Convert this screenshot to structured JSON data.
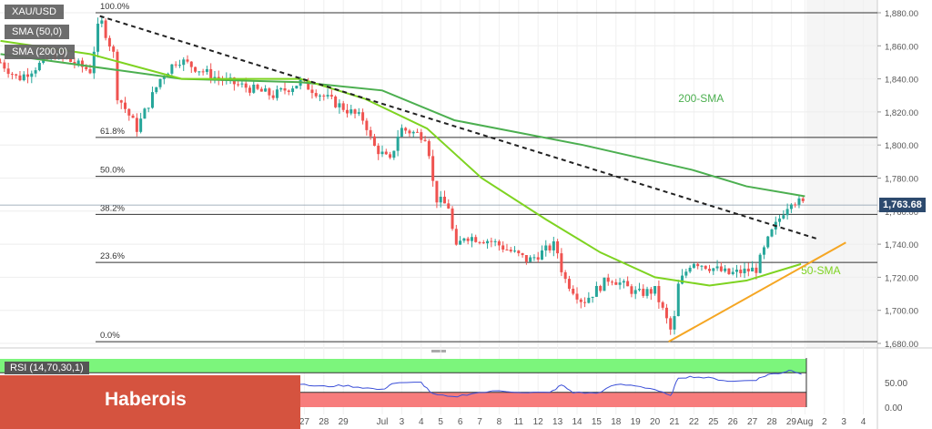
{
  "chart_data": {
    "type": "candlestick",
    "symbol": "XAU/USD",
    "legend": [
      "XAU/USD",
      "SMA (50,0)",
      "SMA (200,0)"
    ],
    "last_price": "1,763.68",
    "ylim": [
      1670,
      1890
    ],
    "y_ticks": [
      "1,880.00",
      "1,860.00",
      "1,840.00",
      "1,820.00",
      "1,800.00",
      "1,780.00",
      "1,760.00",
      "1,740.00",
      "1,720.00",
      "1,700.00",
      "1,680.00"
    ],
    "y_tick_values": [
      1880,
      1860,
      1840,
      1820,
      1800,
      1780,
      1760,
      1740,
      1720,
      1700,
      1680
    ],
    "x_ticks": [
      {
        "label": "27",
        "day": -4
      },
      {
        "label": "28",
        "day": -3
      },
      {
        "label": "29",
        "day": -2
      },
      {
        "label": "Jul",
        "day": 0
      },
      {
        "label": "3",
        "day": 1
      },
      {
        "label": "4",
        "day": 2
      },
      {
        "label": "5",
        "day": 3
      },
      {
        "label": "6",
        "day": 4
      },
      {
        "label": "7",
        "day": 5
      },
      {
        "label": "8",
        "day": 6
      },
      {
        "label": "11",
        "day": 7
      },
      {
        "label": "12",
        "day": 8
      },
      {
        "label": "13",
        "day": 9
      },
      {
        "label": "14",
        "day": 10
      },
      {
        "label": "15",
        "day": 11
      },
      {
        "label": "18",
        "day": 12
      },
      {
        "label": "19",
        "day": 13
      },
      {
        "label": "20",
        "day": 14
      },
      {
        "label": "21",
        "day": 15
      },
      {
        "label": "22",
        "day": 16
      },
      {
        "label": "25",
        "day": 17
      },
      {
        "label": "26",
        "day": 18
      },
      {
        "label": "27",
        "day": 19
      },
      {
        "label": "28",
        "day": 20
      },
      {
        "label": "29",
        "day": 21
      },
      {
        "label": "Aug",
        "day": 21.7
      },
      {
        "label": "2",
        "day": 22.7
      },
      {
        "label": "3",
        "day": 23.7
      },
      {
        "label": "4",
        "day": 24.7
      }
    ],
    "price_path": [
      [
        -19.6,
        1850
      ],
      [
        -18.7,
        1840
      ],
      [
        -16.8,
        1855
      ],
      [
        -15.0,
        1845
      ],
      [
        -14.5,
        1877
      ],
      [
        -13.8,
        1855
      ],
      [
        -13.6,
        1830
      ],
      [
        -12.6,
        1810
      ],
      [
        -11.4,
        1840
      ],
      [
        -10.5,
        1852
      ],
      [
        -8.4,
        1840
      ],
      [
        -5.6,
        1830
      ],
      [
        -4.2,
        1838
      ],
      [
        -2.8,
        1828
      ],
      [
        -0.9,
        1815
      ],
      [
        -0.5,
        1800
      ],
      [
        0.4,
        1790
      ],
      [
        0.9,
        1810
      ],
      [
        2.3,
        1805
      ],
      [
        2.7,
        1768
      ],
      [
        3.5,
        1762
      ],
      [
        3.7,
        1735
      ],
      [
        4.2,
        1745
      ],
      [
        5.6,
        1742
      ],
      [
        7.5,
        1730
      ],
      [
        8.9,
        1740
      ],
      [
        9.3,
        1720
      ],
      [
        10.3,
        1705
      ],
      [
        11.7,
        1720
      ],
      [
        13.1,
        1710
      ],
      [
        14.0,
        1712
      ],
      [
        14.9,
        1685
      ],
      [
        15.2,
        1715
      ],
      [
        15.9,
        1730
      ],
      [
        17.8,
        1722
      ],
      [
        19.2,
        1725
      ],
      [
        19.9,
        1745
      ],
      [
        20.6,
        1760
      ],
      [
        21.0,
        1767
      ],
      [
        21.7,
        1764
      ]
    ],
    "series": [
      {
        "name": "200-SMA",
        "color": "#4caf50",
        "points": [
          [
            -19.6,
            1855
          ],
          [
            -10.3,
            1840
          ],
          [
            -4.2,
            1838
          ],
          [
            0,
            1833
          ],
          [
            3.7,
            1815
          ],
          [
            10.3,
            1800
          ],
          [
            15.9,
            1785
          ],
          [
            18.7,
            1775
          ],
          [
            21.7,
            1769
          ]
        ]
      },
      {
        "name": "50-SMA",
        "color": "#7ed321",
        "points": [
          [
            -19.6,
            1863
          ],
          [
            -15,
            1855
          ],
          [
            -10.3,
            1840
          ],
          [
            -4.2,
            1840
          ],
          [
            -0.9,
            1828
          ],
          [
            2.3,
            1810
          ],
          [
            5.1,
            1780
          ],
          [
            8.4,
            1755
          ],
          [
            11.2,
            1735
          ],
          [
            14,
            1720
          ],
          [
            16.8,
            1715
          ],
          [
            18.7,
            1718
          ],
          [
            21.5,
            1728
          ]
        ]
      }
    ],
    "trendlines": [
      {
        "name": "resistance",
        "style": "dashed",
        "color": "#222",
        "points": [
          [
            -14.5,
            1878
          ],
          [
            22.4,
            1743
          ]
        ]
      },
      {
        "name": "support",
        "style": "solid",
        "color": "#f5a623",
        "points": [
          [
            14.7,
            1681
          ],
          [
            23.8,
            1741
          ]
        ]
      }
    ],
    "fibonacci": [
      {
        "label": "100.0%",
        "price": 1880
      },
      {
        "label": "61.8%",
        "price": 1804.6
      },
      {
        "label": "50.0%",
        "price": 1781
      },
      {
        "label": "38.2%",
        "price": 1758
      },
      {
        "label": "23.6%",
        "price": 1729
      },
      {
        "label": "0.0%",
        "price": 1681
      }
    ],
    "annotations": [
      "200-SMA",
      "50-SMA"
    ],
    "rsi": {
      "label": "RSI (14,70,30,1)",
      "overbought": 70,
      "oversold": 30,
      "y_ticks": [
        "50.00",
        "0.00"
      ],
      "points": [
        [
          -19.6,
          55
        ],
        [
          -6,
          52
        ],
        [
          -4,
          45
        ],
        [
          -3,
          42
        ],
        [
          -2,
          44
        ],
        [
          -1,
          40
        ],
        [
          0,
          35
        ],
        [
          0.5,
          48
        ],
        [
          2,
          50
        ],
        [
          2.6,
          26
        ],
        [
          3.6,
          20
        ],
        [
          4.6,
          28
        ],
        [
          6,
          33
        ],
        [
          7.5,
          30
        ],
        [
          8.6,
          29
        ],
        [
          9.2,
          45
        ],
        [
          9.8,
          30
        ],
        [
          11,
          28
        ],
        [
          12,
          46
        ],
        [
          13,
          44
        ],
        [
          14,
          36
        ],
        [
          14.8,
          22
        ],
        [
          15.2,
          60
        ],
        [
          16,
          62
        ],
        [
          17,
          58
        ],
        [
          18,
          52
        ],
        [
          19.2,
          56
        ],
        [
          19.8,
          66
        ],
        [
          20.5,
          70
        ],
        [
          21,
          76
        ],
        [
          21.7,
          65
        ]
      ]
    },
    "grid": true
  },
  "banner": {
    "text": "Haberois"
  }
}
